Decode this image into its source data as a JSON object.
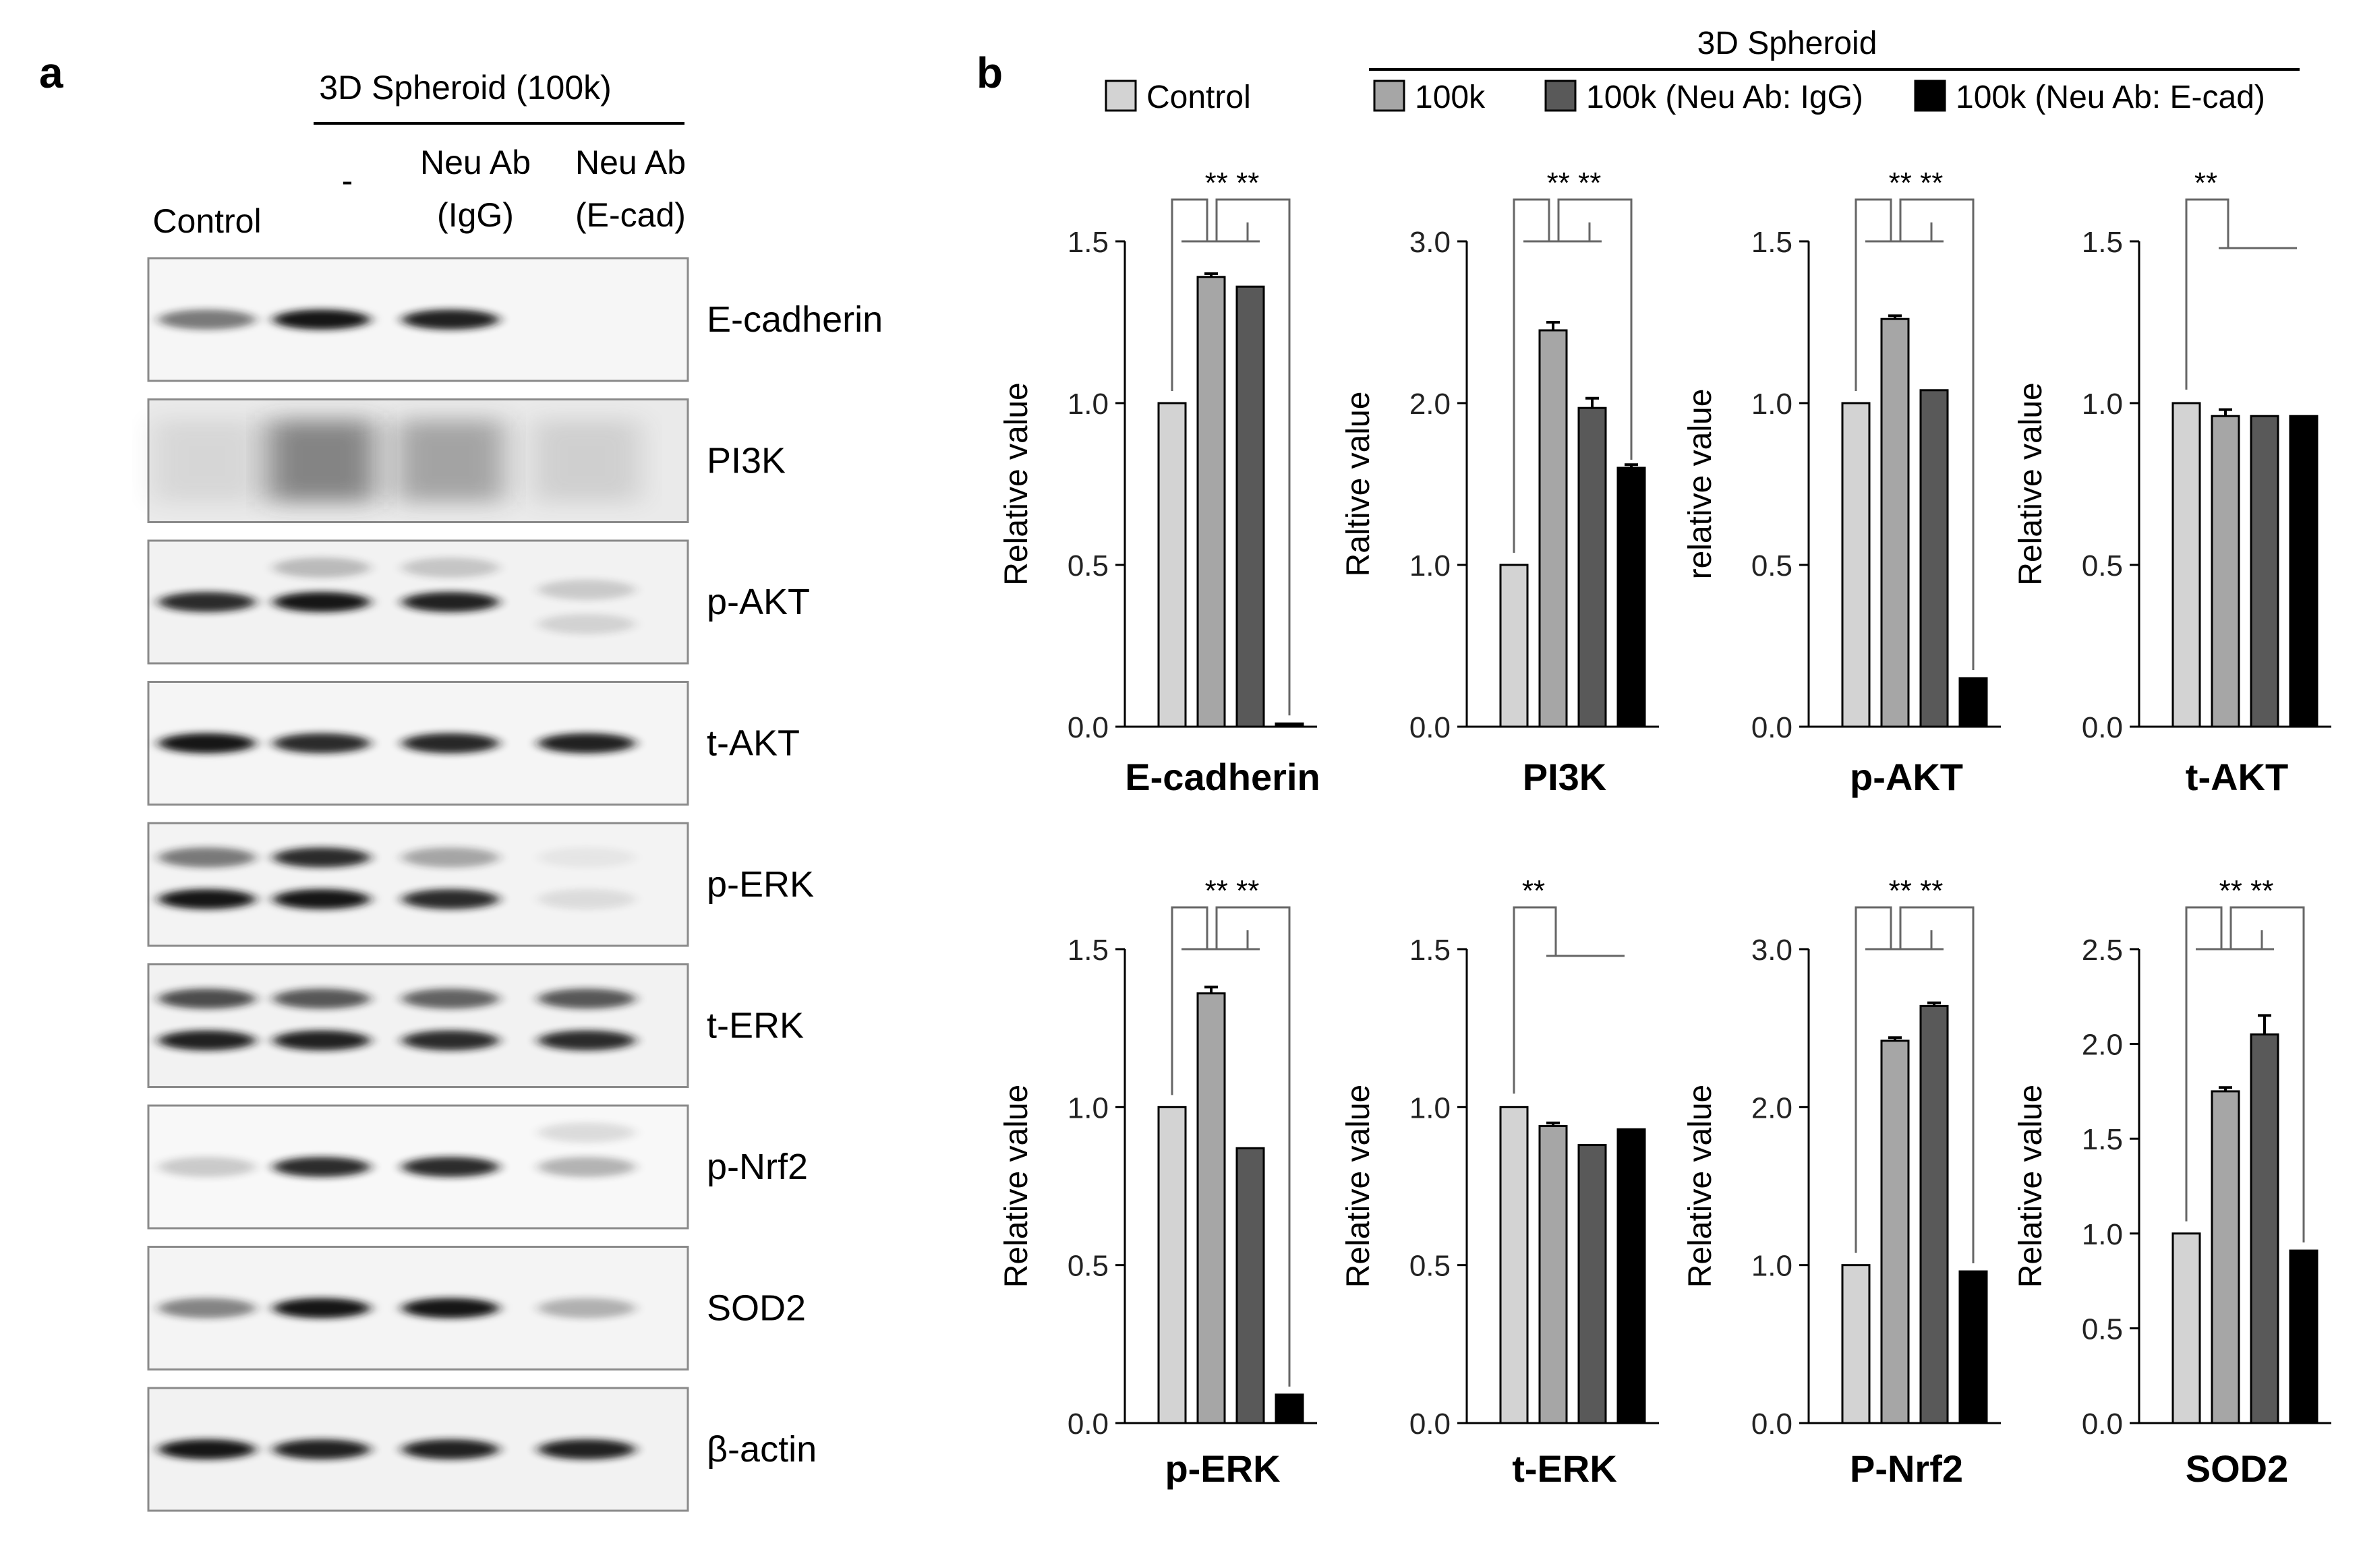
{
  "panel_a": {
    "letter": "a",
    "header": "3D Spheroid (100k)",
    "lanes": [
      {
        "lines": [
          "Control"
        ]
      },
      {
        "lines": [
          "-"
        ]
      },
      {
        "lines": [
          "Neu Ab",
          "(IgG)"
        ]
      },
      {
        "lines": [
          "Neu Ab",
          "(E-cad)"
        ]
      }
    ],
    "blots": [
      {
        "label": "E-cadherin",
        "bg": "#f6f6f6",
        "bands": [
          [
            {
              "i": 0.55
            }
          ],
          [
            {
              "i": 1.0
            }
          ],
          [
            {
              "i": 0.95
            }
          ],
          []
        ]
      },
      {
        "label": "PI3K",
        "bg": "#eaeaea",
        "smear": [
          0.1,
          0.55,
          0.38,
          0.14
        ]
      },
      {
        "label": "p-AKT",
        "bg": "#f2f2f2",
        "bands": [
          [
            {
              "i": 0.9
            }
          ],
          [
            {
              "i": 1.0
            },
            {
              "i": 0.25,
              "dy": -0.28
            }
          ],
          [
            {
              "i": 0.95
            },
            {
              "i": 0.2,
              "dy": -0.28
            }
          ],
          [
            {
              "i": 0.18,
              "dy": -0.1
            },
            {
              "i": 0.14,
              "dy": 0.18
            }
          ]
        ]
      },
      {
        "label": "t-AKT",
        "bg": "#f5f5f5",
        "bands": [
          [
            {
              "i": 1.0
            }
          ],
          [
            {
              "i": 0.9
            }
          ],
          [
            {
              "i": 0.92
            }
          ],
          [
            {
              "i": 0.95
            }
          ]
        ]
      },
      {
        "label": "p-ERK",
        "bg": "#f3f3f3",
        "bands": [
          [
            {
              "i": 0.55,
              "dy": -0.22
            },
            {
              "i": 1.0,
              "dy": 0.12
            }
          ],
          [
            {
              "i": 0.9,
              "dy": -0.22
            },
            {
              "i": 1.0,
              "dy": 0.12
            }
          ],
          [
            {
              "i": 0.35,
              "dy": -0.22
            },
            {
              "i": 0.9,
              "dy": 0.12
            }
          ],
          [
            {
              "i": 0.06,
              "dy": -0.22
            },
            {
              "i": 0.1,
              "dy": 0.12
            }
          ]
        ]
      },
      {
        "label": "t-ERK",
        "bg": "#f2f2f2",
        "bands": [
          [
            {
              "i": 0.75,
              "dy": -0.22
            },
            {
              "i": 0.95,
              "dy": 0.12
            }
          ],
          [
            {
              "i": 0.7,
              "dy": -0.22
            },
            {
              "i": 0.95,
              "dy": 0.12
            }
          ],
          [
            {
              "i": 0.65,
              "dy": -0.22
            },
            {
              "i": 0.9,
              "dy": 0.12
            }
          ],
          [
            {
              "i": 0.7,
              "dy": -0.22
            },
            {
              "i": 0.9,
              "dy": 0.12
            }
          ]
        ]
      },
      {
        "label": "p-Nrf2",
        "bg": "#f8f8f8",
        "bands": [
          [
            {
              "i": 0.2
            }
          ],
          [
            {
              "i": 0.9
            }
          ],
          [
            {
              "i": 0.9
            }
          ],
          [
            {
              "i": 0.3
            },
            {
              "i": 0.12,
              "dy": -0.28
            }
          ]
        ]
      },
      {
        "label": "SOD2",
        "bg": "#f4f4f4",
        "bands": [
          [
            {
              "i": 0.5
            }
          ],
          [
            {
              "i": 1.0
            }
          ],
          [
            {
              "i": 1.0
            }
          ],
          [
            {
              "i": 0.3
            }
          ]
        ]
      },
      {
        "label": "β-actin",
        "bg": "#f2f2f2",
        "bands": [
          [
            {
              "i": 1.0
            }
          ],
          [
            {
              "i": 0.95
            }
          ],
          [
            {
              "i": 0.95
            }
          ],
          [
            {
              "i": 0.95
            }
          ]
        ]
      }
    ]
  },
  "panel_b": {
    "letter": "b",
    "legend_header": "3D Spheroid",
    "colors": {
      "control": "#d3d3d3",
      "100k": "#a6a6a6",
      "100k_igg": "#595959",
      "100k_ecad": "#000000",
      "sig_line": "#666666"
    }
  },
  "chart_data": [
    {
      "type": "bar",
      "title": "E-cadherin",
      "ylabel": "Relative value",
      "ylim": [
        0,
        1.5
      ],
      "yticks": [
        "0.0",
        "0.5",
        "1.0",
        "1.5"
      ],
      "series": [
        {
          "name": "Control",
          "values": [
            1.0
          ]
        },
        {
          "name": "100k",
          "values": [
            1.39
          ]
        },
        {
          "name": "100k (Neu Ab: IgG)",
          "values": [
            1.36
          ]
        },
        {
          "name": "100k (Neu Ab: E-cad)",
          "values": [
            0.01
          ]
        }
      ],
      "errors": [
        0,
        0.01,
        0.0,
        0
      ],
      "significance": "**  **",
      "sig_type": "double"
    },
    {
      "type": "bar",
      "title": "PI3K",
      "ylabel": "Raltive value",
      "ylim": [
        0,
        3.0
      ],
      "yticks": [
        "0.0",
        "1.0",
        "2.0",
        "3.0"
      ],
      "series": [
        {
          "name": "Control",
          "values": [
            1.0
          ]
        },
        {
          "name": "100k",
          "values": [
            2.45
          ]
        },
        {
          "name": "100k (Neu Ab: IgG)",
          "values": [
            1.97
          ]
        },
        {
          "name": "100k (Neu Ab: E-cad)",
          "values": [
            1.6
          ]
        }
      ],
      "errors": [
        0,
        0.05,
        0.06,
        0.02
      ],
      "significance": "**  **",
      "sig_type": "double"
    },
    {
      "type": "bar",
      "title": "p-AKT",
      "ylabel": "relative value",
      "ylim": [
        0,
        1.5
      ],
      "yticks": [
        "0.0",
        "0.5",
        "1.0",
        "1.5"
      ],
      "series": [
        {
          "name": "Control",
          "values": [
            1.0
          ]
        },
        {
          "name": "100k",
          "values": [
            1.26
          ]
        },
        {
          "name": "100k (Neu Ab: IgG)",
          "values": [
            1.04
          ]
        },
        {
          "name": "100k (Neu Ab: E-cad)",
          "values": [
            0.15
          ]
        }
      ],
      "errors": [
        0,
        0.01,
        0.0,
        0
      ],
      "significance": "**  **",
      "sig_type": "double"
    },
    {
      "type": "bar",
      "title": "t-AKT",
      "ylabel": "Relative value",
      "ylim": [
        0,
        1.5
      ],
      "yticks": [
        "0.0",
        "0.5",
        "1.0",
        "1.5"
      ],
      "series": [
        {
          "name": "Control",
          "values": [
            1.0
          ]
        },
        {
          "name": "100k",
          "values": [
            0.96
          ]
        },
        {
          "name": "100k (Neu Ab: IgG)",
          "values": [
            0.96
          ]
        },
        {
          "name": "100k (Neu Ab: E-cad)",
          "values": [
            0.96
          ]
        }
      ],
      "errors": [
        0,
        0.02,
        0,
        0
      ],
      "significance": "**",
      "sig_type": "single"
    },
    {
      "type": "bar",
      "title": "p-ERK",
      "ylabel": "Relative value",
      "ylim": [
        0,
        1.5
      ],
      "yticks": [
        "0.0",
        "0.5",
        "1.0",
        "1.5"
      ],
      "series": [
        {
          "name": "Control",
          "values": [
            1.0
          ]
        },
        {
          "name": "100k",
          "values": [
            1.36
          ]
        },
        {
          "name": "100k (Neu Ab: IgG)",
          "values": [
            0.87
          ]
        },
        {
          "name": "100k (Neu Ab: E-cad)",
          "values": [
            0.09
          ]
        }
      ],
      "errors": [
        0,
        0.02,
        0.0,
        0
      ],
      "significance": "**  **",
      "sig_type": "double"
    },
    {
      "type": "bar",
      "title": "t-ERK",
      "ylabel": "Relative value",
      "ylim": [
        0,
        1.5
      ],
      "yticks": [
        "0.0",
        "0.5",
        "1.0",
        "1.5"
      ],
      "series": [
        {
          "name": "Control",
          "values": [
            1.0
          ]
        },
        {
          "name": "100k",
          "values": [
            0.94
          ]
        },
        {
          "name": "100k (Neu Ab: IgG)",
          "values": [
            0.88
          ]
        },
        {
          "name": "100k (Neu Ab: E-cad)",
          "values": [
            0.93
          ]
        }
      ],
      "errors": [
        0,
        0.01,
        0,
        0
      ],
      "significance": "**",
      "sig_type": "single"
    },
    {
      "type": "bar",
      "title": "P-Nrf2",
      "ylabel": "Relative value",
      "ylim": [
        0,
        3.0
      ],
      "yticks": [
        "0.0",
        "1.0",
        "2.0",
        "3.0"
      ],
      "series": [
        {
          "name": "Control",
          "values": [
            1.0
          ]
        },
        {
          "name": "100k",
          "values": [
            2.42
          ]
        },
        {
          "name": "100k (Neu Ab: IgG)",
          "values": [
            2.64
          ]
        },
        {
          "name": "100k (Neu Ab: E-cad)",
          "values": [
            0.96
          ]
        }
      ],
      "errors": [
        0,
        0.02,
        0.02,
        0
      ],
      "significance": "**  **",
      "sig_type": "double"
    },
    {
      "type": "bar",
      "title": "SOD2",
      "ylabel": "Relative value",
      "ylim": [
        0,
        2.5
      ],
      "yticks": [
        "0.0",
        "0.5",
        "1.0",
        "1.5",
        "2.0",
        "2.5"
      ],
      "series": [
        {
          "name": "Control",
          "values": [
            1.0
          ]
        },
        {
          "name": "100k",
          "values": [
            1.75
          ]
        },
        {
          "name": "100k (Neu Ab: IgG)",
          "values": [
            2.05
          ]
        },
        {
          "name": "100k (Neu Ab: E-cad)",
          "values": [
            0.91
          ]
        }
      ],
      "errors": [
        0,
        0.02,
        0.1,
        0
      ],
      "significance": "**  **",
      "sig_type": "double"
    }
  ]
}
